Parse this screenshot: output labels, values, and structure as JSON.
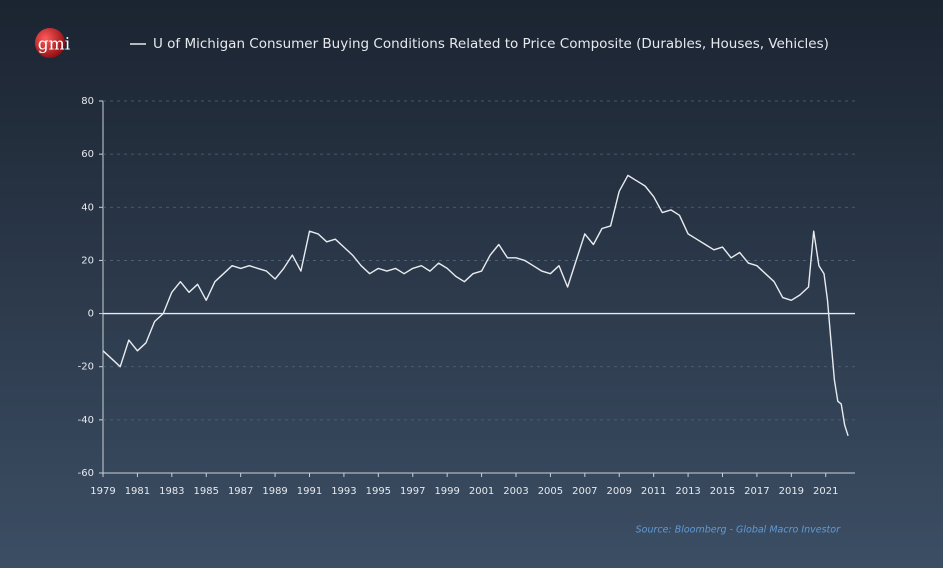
{
  "chart_data": {
    "type": "line",
    "logo": "gmi",
    "source": "Source: Bloomberg - Global Macro Investor",
    "x": [
      1979,
      1979.5,
      1980,
      1980.5,
      1981,
      1981.5,
      1982,
      1982.5,
      1983,
      1983.5,
      1984,
      1984.5,
      1985,
      1985.5,
      1986,
      1986.5,
      1987,
      1987.5,
      1988,
      1988.5,
      1989,
      1989.5,
      1990,
      1990.5,
      1991,
      1991.5,
      1992,
      1992.5,
      1993,
      1993.5,
      1994,
      1994.5,
      1995,
      1995.5,
      1996,
      1996.5,
      1997,
      1997.5,
      1998,
      1998.5,
      1999,
      1999.5,
      2000,
      2000.5,
      2001,
      2001.5,
      2002,
      2002.5,
      2003,
      2003.5,
      2004,
      2004.5,
      2005,
      2005.5,
      2006,
      2006.5,
      2007,
      2007.5,
      2008,
      2008.5,
      2009,
      2009.5,
      2010,
      2010.5,
      2011,
      2011.5,
      2012,
      2012.5,
      2013,
      2013.5,
      2014,
      2014.5,
      2015,
      2015.5,
      2016,
      2016.5,
      2017,
      2017.5,
      2018,
      2018.5,
      2019,
      2019.5,
      2020,
      2020.3,
      2020.6,
      2020.9,
      2021.1,
      2021.3,
      2021.5,
      2021.7,
      2021.9,
      2022.1,
      2022.3
    ],
    "series": [
      {
        "name": "U of Michigan Consumer Buying Conditions Related to Price Composite (Durables, Houses, Vehicles)",
        "color": "#e8ecf0",
        "values": [
          -14,
          -17,
          -20,
          -10,
          -14,
          -11,
          -3,
          0,
          8,
          12,
          8,
          11,
          5,
          12,
          15,
          18,
          17,
          18,
          17,
          16,
          13,
          17,
          22,
          16,
          31,
          30,
          27,
          28,
          25,
          22,
          18,
          15,
          17,
          16,
          17,
          15,
          17,
          18,
          16,
          19,
          17,
          14,
          12,
          15,
          16,
          22,
          26,
          21,
          21,
          20,
          18,
          16,
          15,
          18,
          10,
          20,
          30,
          26,
          32,
          33,
          46,
          52,
          50,
          48,
          44,
          38,
          39,
          37,
          30,
          28,
          26,
          24,
          25,
          21,
          23,
          19,
          18,
          15,
          12,
          6,
          5,
          7,
          10,
          31,
          18,
          15,
          5,
          -10,
          -25,
          -33,
          -34,
          -42,
          -46
        ]
      }
    ],
    "xlim": [
      1979,
      2022.7
    ],
    "xticks": [
      1979,
      1981,
      1983,
      1985,
      1987,
      1989,
      1991,
      1993,
      1995,
      1997,
      1999,
      2001,
      2003,
      2005,
      2007,
      2009,
      2011,
      2013,
      2015,
      2017,
      2019,
      2021
    ],
    "ylim": [
      -60,
      80
    ],
    "yticks": [
      -60,
      -40,
      -20,
      0,
      20,
      40,
      60,
      80
    ],
    "grid": true
  }
}
